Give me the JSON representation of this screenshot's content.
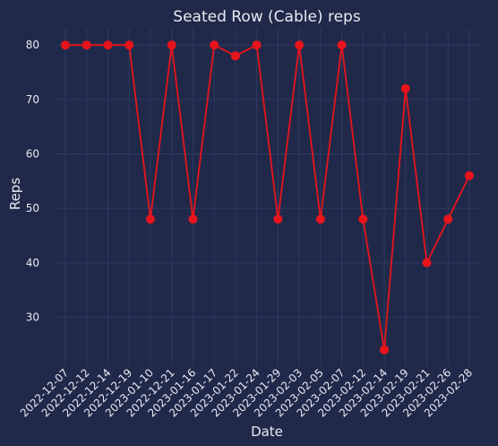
{
  "chart_data": {
    "type": "line",
    "title": "Seated Row (Cable) reps",
    "xlabel": "Date",
    "ylabel": "Reps",
    "x": [
      "2022-12-07",
      "2022-12-12",
      "2022-12-14",
      "2022-12-19",
      "2023-01-10",
      "2022-12-21",
      "2023-01-16",
      "2023-01-17",
      "2023-01-22",
      "2023-01-24",
      "2023-01-29",
      "2023-02-03",
      "2023-02-05",
      "2023-02-07",
      "2023-02-12",
      "2023-02-14",
      "2023-02-19",
      "2023-02-21",
      "2023-02-26",
      "2023-02-28"
    ],
    "series": [
      {
        "values": [
          80,
          80,
          80,
          80,
          48,
          80,
          48,
          80,
          78,
          80,
          48,
          80,
          48,
          80,
          48,
          24,
          72,
          40,
          48,
          56
        ]
      }
    ],
    "yticks": [
      30,
      40,
      50,
      60,
      70,
      80
    ],
    "ylim": [
      21,
      83
    ],
    "grid": true,
    "colors": {
      "background": "#21294a",
      "grid": "#2e3a62",
      "line": "#e8141b",
      "text": "#e8eaf2"
    }
  }
}
